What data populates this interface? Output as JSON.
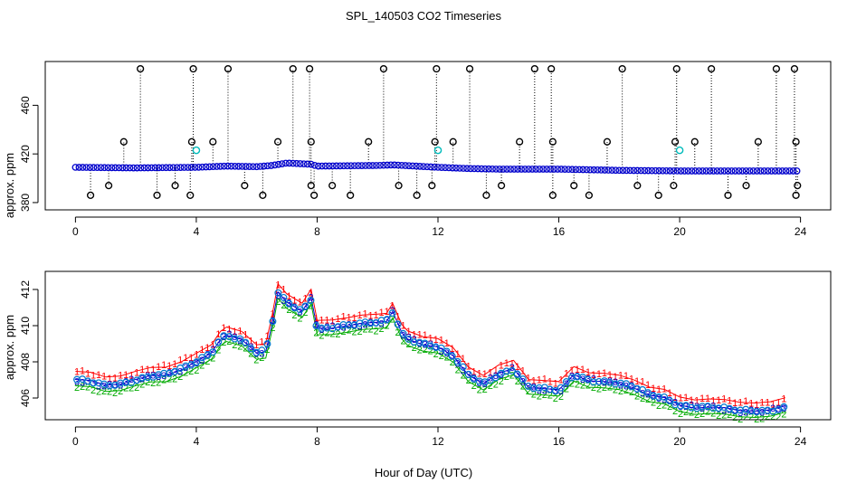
{
  "title": "SPL_140503  CO2 Timeseries",
  "xlabel": "Hour of Day (UTC)",
  "chart_data": [
    {
      "type": "scatter",
      "name": "top-panel",
      "ylabel": "approx. ppm",
      "xlim": [
        -1,
        25
      ],
      "ylim": [
        374,
        496
      ],
      "xticks": [
        0,
        4,
        8,
        12,
        16,
        20,
        24
      ],
      "yticks": [
        380,
        420,
        460
      ],
      "baseline_series": [
        {
          "name": "baseline-smooth",
          "color": "#0000cc",
          "x": [
            0,
            2,
            4,
            5,
            6,
            6.5,
            7,
            7.8,
            8,
            10,
            10.5,
            12,
            13,
            14,
            16,
            18,
            20,
            22,
            24
          ],
          "y": [
            409,
            408.5,
            409,
            410,
            409.5,
            410.5,
            412.5,
            411.5,
            410,
            410.5,
            411,
            409,
            408,
            407.5,
            407.5,
            406.5,
            406,
            406,
            406
          ]
        }
      ],
      "spikes_high": [
        2.15,
        3.9,
        5.05,
        7.2,
        7.75,
        10.2,
        11.95,
        13.05,
        15.2,
        15.75,
        18.1,
        19.9,
        21.05,
        23.2,
        23.8
      ],
      "spikes_mid": [
        1.6,
        3.85,
        4.55,
        6.7,
        7.8,
        9.7,
        11.9,
        12.5,
        14.7,
        15.8,
        17.6,
        19.85,
        20.5,
        22.6,
        23.85
      ],
      "spikes_low": [
        0.5,
        1.1,
        2.7,
        3.3,
        3.8,
        5.6,
        6.2,
        7.8,
        7.9,
        8.5,
        9.1,
        10.7,
        11.3,
        11.8,
        13.6,
        14.1,
        15.8,
        16.5,
        17.0,
        18.6,
        19.3,
        19.8,
        21.6,
        22.2,
        23.85,
        23.9
      ],
      "spike_levels": {
        "high": 490,
        "mid": 430,
        "low": 386,
        "lower": 394
      },
      "cyan_points": [
        {
          "x": 4.0,
          "y": 423
        },
        {
          "x": 12.0,
          "y": 423
        },
        {
          "x": 20.0,
          "y": 423
        }
      ]
    },
    {
      "type": "line",
      "name": "bottom-panel",
      "ylabel": "approx. ppm",
      "xlim": [
        -1,
        25
      ],
      "ylim": [
        404.8,
        413.0
      ],
      "xticks": [
        0,
        4,
        8,
        12,
        16,
        20,
        24
      ],
      "yticks": [
        406,
        408,
        410,
        412
      ],
      "markers": [
        "1",
        "2",
        "3"
      ],
      "series": [
        {
          "name": "1",
          "color": "#ff0000",
          "offset": 0.45
        },
        {
          "name": "2",
          "color": "#00aa00",
          "offset": -0.35
        },
        {
          "name": "3",
          "color": "#0000cc",
          "offset": 0.0
        }
      ],
      "x": [
        0,
        0.5,
        1,
        1.5,
        2,
        2.5,
        3,
        3.5,
        4,
        4.5,
        4.8,
        5,
        5.5,
        6,
        6.3,
        6.5,
        6.7,
        7,
        7.5,
        7.8,
        8,
        8.5,
        9,
        9.5,
        10,
        10.3,
        10.5,
        10.8,
        11,
        11.5,
        12,
        12.5,
        13,
        13.5,
        14,
        14.5,
        15,
        15.5,
        16,
        16.5,
        17,
        17.5,
        18,
        18.5,
        19,
        19.5,
        20,
        20.5,
        21,
        21.5,
        22,
        22.5,
        23,
        23.5
      ],
      "y": [
        407.0,
        406.9,
        406.7,
        406.8,
        407.0,
        407.2,
        407.3,
        407.6,
        408.0,
        408.5,
        409.3,
        409.5,
        409.2,
        408.5,
        408.6,
        410.0,
        411.8,
        411.3,
        410.8,
        411.5,
        409.8,
        409.9,
        410.0,
        410.1,
        410.2,
        410.3,
        410.8,
        409.6,
        409.3,
        409.0,
        408.8,
        408.3,
        407.3,
        406.8,
        407.3,
        407.6,
        406.6,
        406.5,
        406.4,
        407.3,
        407.0,
        406.9,
        406.8,
        406.6,
        406.2,
        406.0,
        405.6,
        405.5,
        405.5,
        405.4,
        405.3,
        405.3,
        405.3,
        405.5
      ]
    }
  ]
}
